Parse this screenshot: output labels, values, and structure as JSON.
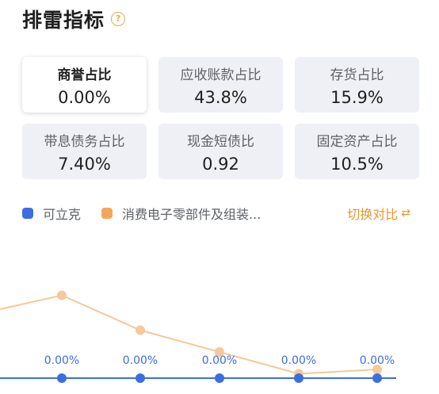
{
  "title": "排雷指标",
  "help_icon": "?",
  "cards": [
    {
      "label": "商誉占比",
      "value": "0.00%",
      "selected": true
    },
    {
      "label": "应收账款占比",
      "value": "43.8%"
    },
    {
      "label": "存货占比",
      "value": "15.9%"
    },
    {
      "label": "带息债务占比",
      "value": "7.40%"
    },
    {
      "label": "现金短债比",
      "value": "0.92"
    },
    {
      "label": "固定资产占比",
      "value": "10.5%"
    }
  ],
  "legend": {
    "company": {
      "label": "可立克",
      "color": "#3b6fe0"
    },
    "industry": {
      "label": "消费电子零部件及组装...",
      "color": "#f3a65a"
    }
  },
  "switch_label": "切换对比",
  "colors": {
    "accent": "#e8962e",
    "company_line": "#3b6fe0",
    "industry_line": "#f5c999"
  },
  "chart_data": {
    "type": "line",
    "series": [
      {
        "name": "可立克",
        "values": [
          0,
          0,
          0,
          0,
          0,
          0
        ],
        "labels": [
          "",
          "0.00%",
          "0.00%",
          "0.00%",
          "0.00%",
          "0.00%"
        ]
      },
      {
        "name": "消费电子零部件及组装...",
        "values": [
          null,
          1.9,
          1.1,
          0.6,
          0.1,
          0.2
        ]
      }
    ]
  }
}
